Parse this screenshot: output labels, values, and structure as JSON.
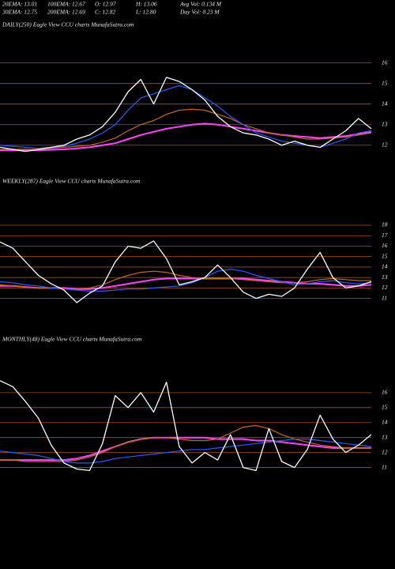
{
  "header": {
    "rows": [
      [
        "20EMA: 13.01",
        "100EMA: 12.67",
        "O: 12.97",
        "H: 13.06",
        "Avg Vol: 0.134 M"
      ],
      [
        "30EMA: 12.75",
        "200EMA: 12.69",
        "C: 12.82",
        "L: 12.80",
        "Day Vol: 0.23 M"
      ]
    ]
  },
  "chart_data": [
    {
      "type": "line",
      "title": "DAILY(250) Eagle  View  CCU charts MunafaSutra.com",
      "ylim": [
        10.8,
        18.1
      ],
      "yticks": [
        12,
        13,
        14,
        15,
        16
      ],
      "grid": true,
      "series": [
        {
          "color": "#ff44ff",
          "values": [
            11.75,
            11.75,
            11.75,
            11.75,
            11.78,
            11.8,
            11.85,
            11.9,
            12.0,
            12.1,
            12.3,
            12.5,
            12.65,
            12.8,
            12.9,
            13.0,
            13.05,
            13.0,
            12.9,
            12.8,
            12.7,
            12.6,
            12.5,
            12.45,
            12.4,
            12.35,
            12.4,
            12.45,
            12.55,
            12.65
          ]
        },
        {
          "color": "#c06a20",
          "values": [
            11.8,
            11.8,
            11.8,
            11.8,
            11.85,
            11.9,
            11.95,
            12.0,
            12.15,
            12.35,
            12.7,
            13.0,
            13.2,
            13.5,
            13.7,
            13.75,
            13.7,
            13.5,
            13.3,
            13.0,
            12.8,
            12.6,
            12.5,
            12.4,
            12.3,
            12.3,
            12.35,
            12.4,
            12.5,
            12.6
          ]
        },
        {
          "color": "#2a5cff",
          "values": [
            12.0,
            11.95,
            11.9,
            11.85,
            11.9,
            11.95,
            12.1,
            12.3,
            12.6,
            13.0,
            13.7,
            14.3,
            14.5,
            14.7,
            14.9,
            14.7,
            14.3,
            13.9,
            13.4,
            13.0,
            12.6,
            12.4,
            12.2,
            12.1,
            12.0,
            11.9,
            12.1,
            12.3,
            12.6,
            12.7
          ]
        },
        {
          "color": "#ffffff",
          "values": [
            11.9,
            11.8,
            11.7,
            11.8,
            11.9,
            12.0,
            12.3,
            12.5,
            12.9,
            13.6,
            14.6,
            15.2,
            14.0,
            15.3,
            15.1,
            14.7,
            14.2,
            13.4,
            12.9,
            12.6,
            12.5,
            12.3,
            12.0,
            12.2,
            12.0,
            11.9,
            12.3,
            12.7,
            13.3,
            12.8
          ]
        }
      ]
    },
    {
      "type": "line",
      "title": "WEEKLY(287) Eagle  View  CCU charts MunafaSutra.com",
      "ylim": [
        7.8,
        21.4
      ],
      "yticks": [
        11,
        12,
        13,
        14,
        15,
        16,
        17,
        18
      ],
      "grid": true,
      "series": [
        {
          "color": "#ff44ff",
          "values": [
            12.2,
            12.2,
            12.1,
            12.0,
            12.0,
            12.0,
            11.9,
            11.9,
            12.0,
            12.2,
            12.4,
            12.6,
            12.8,
            12.9,
            12.9,
            12.9,
            12.9,
            12.9,
            12.9,
            12.9,
            12.8,
            12.7,
            12.6,
            12.5,
            12.4,
            12.4,
            12.3,
            12.2,
            12.2,
            12.3
          ]
        },
        {
          "color": "#c06a20",
          "values": [
            12.3,
            12.2,
            12.1,
            12.0,
            12.0,
            11.9,
            11.9,
            12.0,
            12.3,
            12.8,
            13.2,
            13.5,
            13.6,
            13.5,
            13.2,
            13.0,
            12.9,
            12.9,
            12.9,
            12.8,
            12.7,
            12.6,
            12.5,
            12.5,
            12.6,
            12.8,
            12.9,
            12.8,
            12.7,
            12.7
          ]
        },
        {
          "color": "#2a5cff",
          "values": [
            12.6,
            12.5,
            12.3,
            12.2,
            12.0,
            11.9,
            11.8,
            11.7,
            11.7,
            11.8,
            11.9,
            11.9,
            12.0,
            12.1,
            12.2,
            12.5,
            13.0,
            13.6,
            13.8,
            13.6,
            13.2,
            12.9,
            12.6,
            12.3,
            12.4,
            12.6,
            12.7,
            12.5,
            12.4,
            12.5
          ]
        },
        {
          "color": "#ffffff",
          "values": [
            16.4,
            15.8,
            14.5,
            13.2,
            12.4,
            11.8,
            10.6,
            11.5,
            12.2,
            14.5,
            16.0,
            15.8,
            16.5,
            14.8,
            12.3,
            12.6,
            13.0,
            14.2,
            13.0,
            11.6,
            11.0,
            11.4,
            11.2,
            12.0,
            13.8,
            15.4,
            13.0,
            12.0,
            12.2,
            12.6
          ]
        }
      ]
    },
    {
      "type": "line",
      "title": "MONTHLY(48) Eagle  View  CCU charts MunafaSutra.com",
      "ylim": [
        9.5,
        19
      ],
      "yticks": [
        11,
        12,
        13,
        14,
        15,
        16
      ],
      "grid": true,
      "series": [
        {
          "color": "#ff44ff",
          "values": [
            11.5,
            11.5,
            11.5,
            11.5,
            11.5,
            11.5,
            11.6,
            11.8,
            12.1,
            12.4,
            12.7,
            12.9,
            13.0,
            13.0,
            13.0,
            13.0,
            13.0,
            12.9,
            12.9,
            12.9,
            12.8,
            12.8,
            12.7,
            12.6,
            12.5,
            12.4,
            12.3,
            12.3,
            12.3,
            12.3
          ]
        },
        {
          "color": "#c06a20",
          "values": [
            11.5,
            11.5,
            11.4,
            11.4,
            11.4,
            11.4,
            11.5,
            11.7,
            12.0,
            12.4,
            12.7,
            12.9,
            13.0,
            13.0,
            12.9,
            12.8,
            12.8,
            12.9,
            13.3,
            13.7,
            13.8,
            13.6,
            13.2,
            12.9,
            12.7,
            12.5,
            12.4,
            12.3,
            12.3,
            12.3
          ]
        },
        {
          "color": "#2a5cff",
          "values": [
            12.1,
            12.0,
            11.9,
            11.8,
            11.6,
            11.4,
            11.3,
            11.3,
            11.4,
            11.6,
            11.7,
            11.8,
            11.9,
            12.0,
            12.1,
            12.2,
            12.2,
            12.3,
            12.4,
            12.5,
            12.6,
            12.7,
            12.8,
            12.9,
            12.9,
            12.8,
            12.7,
            12.6,
            12.5,
            12.4
          ]
        },
        {
          "color": "#ffffff",
          "values": [
            16.8,
            16.4,
            15.4,
            14.3,
            12.5,
            11.3,
            10.9,
            10.8,
            12.6,
            15.8,
            15.0,
            16.0,
            14.7,
            16.7,
            12.4,
            11.3,
            12.0,
            11.5,
            13.2,
            11.0,
            10.8,
            13.6,
            11.4,
            11.0,
            12.2,
            14.5,
            12.9,
            12.0,
            12.5,
            13.2
          ]
        }
      ]
    }
  ]
}
